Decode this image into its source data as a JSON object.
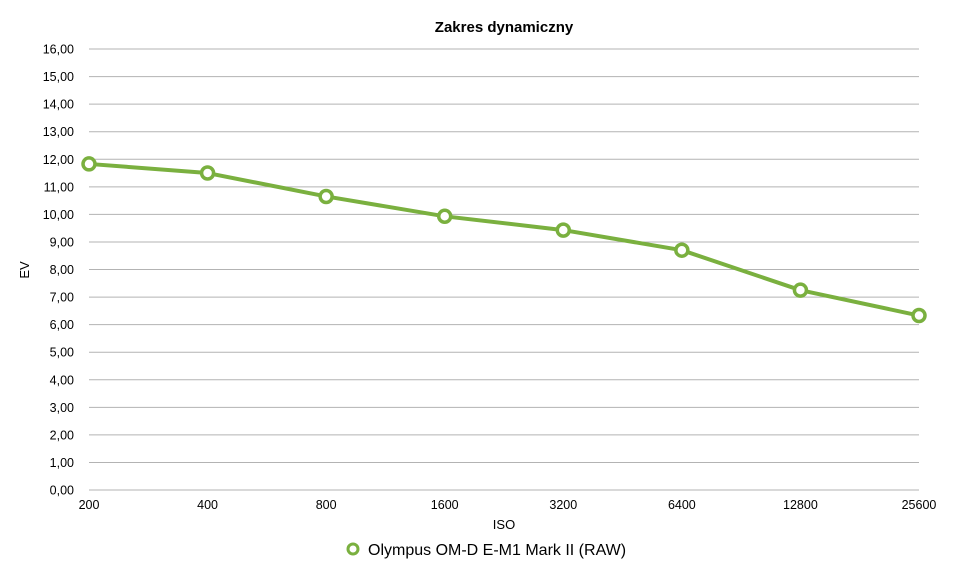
{
  "chart_data": {
    "type": "line",
    "title": "Zakres dynamiczny",
    "xlabel": "ISO",
    "ylabel": "EV",
    "categories": [
      "200",
      "400",
      "800",
      "1600",
      "3200",
      "6400",
      "12800",
      "25600"
    ],
    "ylim": [
      0,
      16
    ],
    "yticks": [
      "0,00",
      "1,00",
      "2,00",
      "3,00",
      "4,00",
      "5,00",
      "6,00",
      "7,00",
      "8,00",
      "9,00",
      "10,00",
      "11,00",
      "12,00",
      "13,00",
      "14,00",
      "15,00",
      "16,00"
    ],
    "grid": true,
    "legend_position": "bottom",
    "series": [
      {
        "name": "Olympus OM-D E-M1 Mark II (RAW)",
        "color": "#7ab03f",
        "values": [
          11.83,
          11.5,
          10.65,
          9.93,
          9.43,
          8.7,
          7.25,
          6.33
        ]
      }
    ]
  }
}
